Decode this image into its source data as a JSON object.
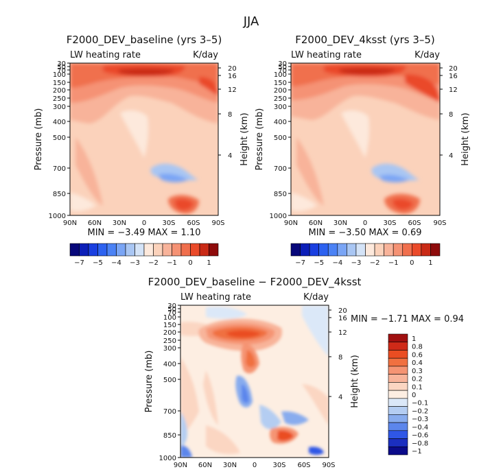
{
  "figure": {
    "main_title": "JJA"
  },
  "chart_data": [
    {
      "type": "heatmap",
      "title": "F2000_DEV_baseline (yrs 3–5)",
      "variable": "LW heating rate",
      "units": "K/day",
      "xlabel": "",
      "ylabel": "Pressure (mb)",
      "ylabel_right": "Height (km)",
      "x_ticks": [
        "90N",
        "60N",
        "30N",
        "0",
        "30S",
        "60S",
        "90S"
      ],
      "y_ticks": [
        30,
        50,
        70,
        100,
        150,
        200,
        250,
        300,
        400,
        500,
        700,
        850,
        1000
      ],
      "y_ticks_right": [
        20,
        16,
        12,
        8,
        4
      ],
      "ylim": [
        1000,
        30
      ],
      "min_max_text": "MIN =  −3.49   MAX =   1.10",
      "colorbar_labels": [
        "−7",
        "−5",
        "−4",
        "−3",
        "−2",
        "−1",
        "0",
        "1"
      ],
      "stats": {
        "min": -3.49,
        "max": 1.1
      }
    },
    {
      "type": "heatmap",
      "title": "F2000_DEV_4ksst (yrs 3–5)",
      "variable": "LW heating rate",
      "units": "K/day",
      "xlabel": "",
      "ylabel": "Pressure (mb)",
      "ylabel_right": "Height (km)",
      "x_ticks": [
        "90N",
        "60N",
        "30N",
        "0",
        "30S",
        "60S",
        "90S"
      ],
      "y_ticks": [
        30,
        50,
        70,
        100,
        150,
        200,
        250,
        300,
        400,
        500,
        700,
        850,
        1000
      ],
      "y_ticks_right": [
        20,
        16,
        12,
        8,
        4
      ],
      "ylim": [
        1000,
        30
      ],
      "min_max_text": "MIN =  −3.50   MAX =   0.69",
      "colorbar_labels": [
        "−7",
        "−5",
        "−4",
        "−3",
        "−2",
        "−1",
        "0",
        "1"
      ],
      "stats": {
        "min": -3.5,
        "max": 0.69
      }
    },
    {
      "type": "heatmap",
      "title": "F2000_DEV_baseline − F2000_DEV_4ksst",
      "variable": "LW heating rate",
      "units": "K/day",
      "xlabel": "",
      "ylabel": "Pressure (mb)",
      "ylabel_right": "Height (km)",
      "x_ticks": [
        "90N",
        "60N",
        "30N",
        "0",
        "30S",
        "60S",
        "90S"
      ],
      "y_ticks": [
        30,
        50,
        70,
        100,
        150,
        200,
        250,
        300,
        400,
        500,
        700,
        850,
        1000
      ],
      "y_ticks_right": [
        20,
        16,
        12,
        8,
        4
      ],
      "ylim": [
        1000,
        30
      ],
      "min_max_text": "MIN =  −1.71   MAX =   0.94",
      "colorbar_labels": [
        "1",
        "0.8",
        "0.6",
        "0.4",
        "0.3",
        "0.2",
        "0.1",
        "0",
        "−0.1",
        "−0.2",
        "−0.3",
        "−0.4",
        "−0.6",
        "−0.8",
        "−1"
      ],
      "stats": {
        "min": -1.71,
        "max": 0.94
      }
    }
  ],
  "colors": {
    "abs_scale": [
      "#08087a",
      "#0c1fb8",
      "#1a3fe0",
      "#2d62f0",
      "#4b82f5",
      "#7aa5f5",
      "#a9c6f3",
      "#d4e3f7",
      "#fde9dc",
      "#fbd2bb",
      "#f8b39a",
      "#f59274",
      "#f06f4d",
      "#ea4a2a",
      "#c92a16",
      "#8e0b0b"
    ],
    "diff_scale_top_to_bottom": [
      "#a01010",
      "#cf2a18",
      "#ea4d22",
      "#f07040",
      "#f59473",
      "#f8b49a",
      "#fbd6c2",
      "#fdeee2",
      "#dbe8f8",
      "#b4cdf2",
      "#88acee",
      "#5c86ec",
      "#2f57e6",
      "#1b2fc0",
      "#0b0b8a"
    ]
  }
}
